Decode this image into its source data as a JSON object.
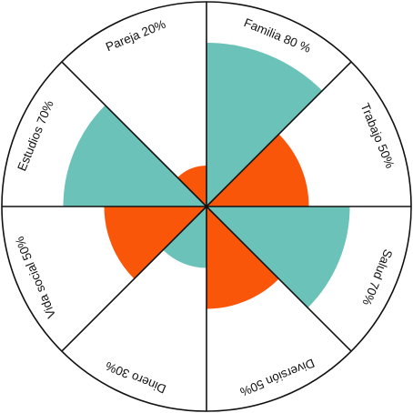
{
  "chart_data": {
    "type": "polar-area",
    "max_value": 100,
    "colors": {
      "teal": "#6BC2B8",
      "orange": "#F9560A",
      "outline": "#111111"
    },
    "segments": [
      {
        "label": "Familia 80 %",
        "value": 80,
        "color": "teal"
      },
      {
        "label": "Trabajo 50%",
        "value": 50,
        "color": "orange"
      },
      {
        "label": "Salud 70%",
        "value": 70,
        "color": "teal"
      },
      {
        "label": "Diversión 50%",
        "value": 50,
        "color": "orange"
      },
      {
        "label": "Dinero 30%",
        "value": 30,
        "color": "teal"
      },
      {
        "label": "Vida social 50%",
        "value": 50,
        "color": "orange"
      },
      {
        "label": "Estudios 70%",
        "value": 70,
        "color": "teal"
      },
      {
        "label": "Pareja 20%",
        "value": 20,
        "color": "orange"
      }
    ]
  }
}
